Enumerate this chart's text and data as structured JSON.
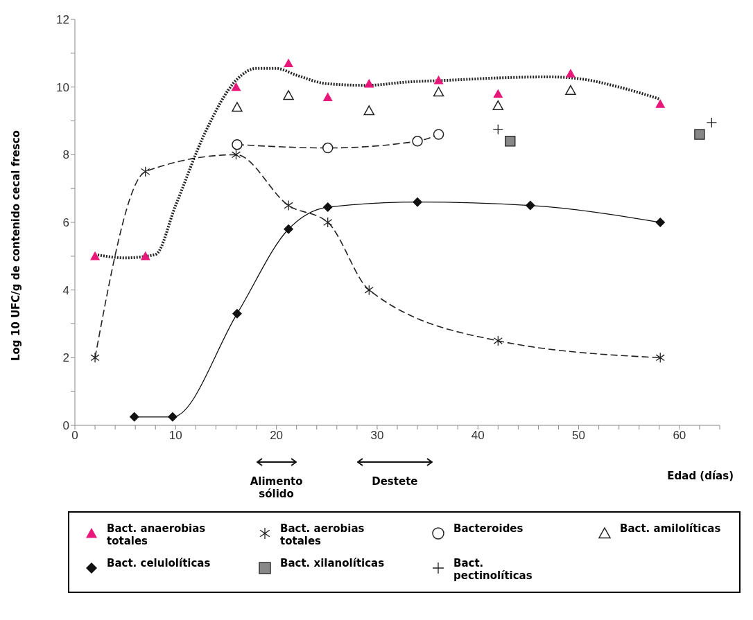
{
  "chart_data": {
    "type": "line",
    "ylabel": "Log 10 UFC/g de contenido cecal fresco",
    "xlabel": "Edad (días)",
    "xlim": [
      0,
      64
    ],
    "xticks": [
      0,
      {
        "value": 2,
        "label": null
      },
      {
        "value": 4,
        "label": null
      },
      {
        "value": 6,
        "label": null
      },
      {
        "value": 8,
        "label": null
      },
      10,
      {
        "value": 12,
        "label": null
      },
      {
        "value": 14,
        "label": null
      },
      {
        "value": 16,
        "label": null
      },
      {
        "value": 18,
        "label": null
      },
      20,
      {
        "value": 22,
        "label": null
      },
      {
        "value": 24,
        "label": null
      },
      {
        "value": 26,
        "label": null
      },
      {
        "value": 28,
        "label": null
      },
      30,
      {
        "value": 32,
        "label": null
      },
      {
        "value": 34,
        "label": null
      },
      {
        "value": 36,
        "label": null
      },
      {
        "value": 38,
        "label": null
      },
      40,
      {
        "value": 42,
        "label": null
      },
      {
        "value": 44,
        "label": null
      },
      {
        "value": 46,
        "label": null
      },
      {
        "value": 48,
        "label": null
      },
      50,
      {
        "value": 52,
        "label": null
      },
      {
        "value": 54,
        "label": null
      },
      {
        "value": 56,
        "label": null
      },
      {
        "value": 58,
        "label": null
      },
      60,
      {
        "value": 62,
        "label": null
      },
      {
        "value": 64,
        "label": null
      }
    ],
    "ylim": [
      0,
      12
    ],
    "yticks": [
      0,
      {
        "value": 1,
        "label": null
      },
      2,
      {
        "value": 3,
        "label": null
      },
      4,
      {
        "value": 5,
        "label": null
      },
      6,
      {
        "value": 7,
        "label": null
      },
      8,
      {
        "value": 9,
        "label": null
      },
      10,
      {
        "value": 11,
        "label": null
      },
      12
    ],
    "legend": "bottom",
    "annotations": [
      "Alimento sólido",
      "Destete"
    ],
    "series": [
      {
        "name": "Bact. anaerobias totales",
        "type": "scatter",
        "marker": "triangle",
        "color": "#e8177a",
        "x": [
          2,
          7,
          16,
          21.2,
          25.1,
          29.2,
          36.1,
          42,
          49.2,
          58.1
        ],
        "values": [
          5.0,
          5.0,
          10.0,
          10.7,
          9.7,
          10.1,
          10.2,
          9.8,
          10.4,
          9.5
        ]
      },
      {
        "marker": "none",
        "line_style": "dotted",
        "color": "#222222",
        "x": [
          2,
          5,
          8,
          10,
          13,
          16,
          18,
          20,
          22,
          25,
          29,
          33,
          37,
          42,
          47,
          50,
          54,
          58
        ],
        "values": [
          5.05,
          4.95,
          5.05,
          6.5,
          8.7,
          10.2,
          10.55,
          10.55,
          10.35,
          10.1,
          10.05,
          10.15,
          10.2,
          10.27,
          10.3,
          10.25,
          10.0,
          9.65
        ]
      },
      {
        "name": "Bact. aerobias totales",
        "marker": "cross",
        "line_style": "dashed",
        "color": "#222222",
        "x": [
          2,
          7,
          16,
          21.2,
          25.1,
          29.2,
          42,
          58.1
        ],
        "values": [
          2.0,
          7.5,
          8.0,
          6.5,
          6.0,
          4.0,
          2.5,
          2.0
        ]
      },
      {
        "name": "Bacteroides",
        "marker": "circle",
        "line_style": "dashed",
        "color": "#222222",
        "x": [
          16.1,
          25.1,
          34,
          36.1
        ],
        "values": [
          8.3,
          8.2,
          8.4,
          8.6
        ]
      },
      {
        "name": "Bact. amilolíticas",
        "type": "scatter",
        "marker": "triangle",
        "color": "#222222",
        "x": [
          16.1,
          21.2,
          29.2,
          36.1,
          42,
          49.2
        ],
        "values": [
          9.4,
          9.75,
          9.3,
          9.85,
          9.45,
          9.9
        ]
      },
      {
        "name": "Bact. celulolíticas",
        "marker": "diamond",
        "line_style": "solid",
        "color": "#111111",
        "x": [
          5.9,
          9.7,
          16.1,
          21.2,
          25.1,
          34,
          45.2,
          58.1
        ],
        "values": [
          0.25,
          0.25,
          3.3,
          5.8,
          6.45,
          6.6,
          6.5,
          6.0
        ]
      },
      {
        "name": "Bact. xilanolíticas",
        "type": "scatter",
        "marker": "square",
        "color": "#888888",
        "x": [
          43.2,
          62
        ],
        "values": [
          8.4,
          8.6
        ]
      },
      {
        "name": "Bact. pectinolíticas",
        "type": "scatter",
        "marker": "cross",
        "color": "#222222",
        "x": [
          42,
          63.2
        ],
        "values": [
          8.75,
          8.95
        ]
      }
    ]
  }
}
